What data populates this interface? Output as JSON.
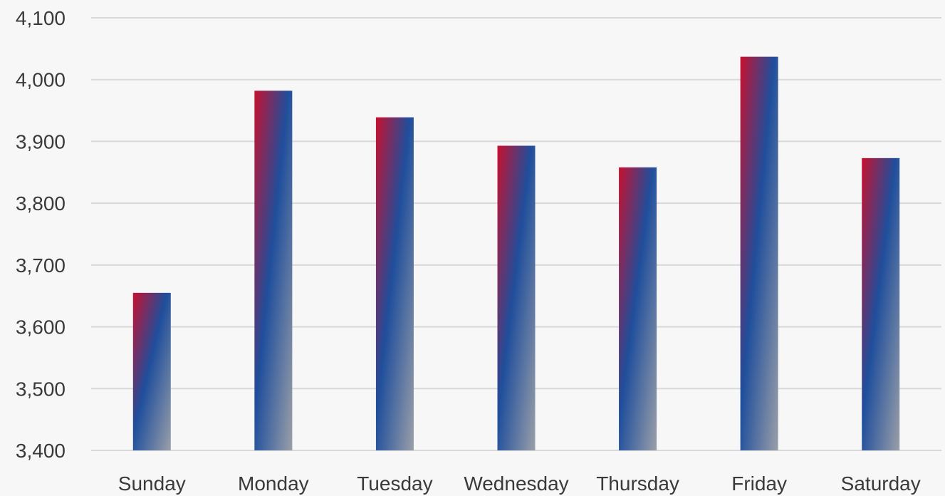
{
  "chart_data": {
    "type": "bar",
    "title": "",
    "xlabel": "",
    "ylabel": "",
    "categories": [
      "Sunday",
      "Monday",
      "Tuesday",
      "Wednesday",
      "Thursday",
      "Friday",
      "Saturday"
    ],
    "values": [
      3655,
      3982,
      3939,
      3893,
      3858,
      4037,
      3873
    ],
    "ylim": [
      3400,
      4100
    ],
    "yticks": [
      3400,
      3500,
      3600,
      3700,
      3800,
      3900,
      4000,
      4100
    ],
    "ytick_labels": [
      "3,400",
      "3,500",
      "3,600",
      "3,700",
      "3,800",
      "3,900",
      "4,000",
      "4,100"
    ],
    "grid": true,
    "legend": "none",
    "colors": {
      "gradient_start": "#c8102e",
      "gradient_mid": "#1f4e9c",
      "gradient_end": "#9a9fa8"
    }
  }
}
